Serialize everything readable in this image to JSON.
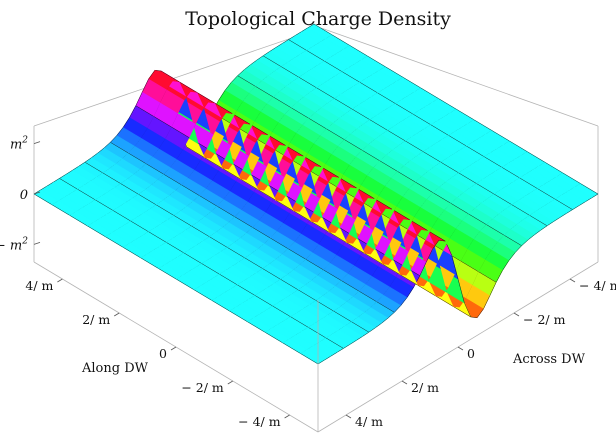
{
  "chart_data": {
    "type": "surface3d",
    "title": "Topological Charge Density",
    "x_axis": {
      "label": "Along DW",
      "ticks": [
        "4/ m",
        "2/ m",
        "0",
        "− 2/ m",
        "− 4/ m"
      ],
      "values": [
        4,
        2,
        0,
        -2,
        -4
      ]
    },
    "y_axis": {
      "label": "Across DW",
      "ticks": [
        "− 4/ m",
        "− 2/ m",
        "0",
        "2/ m",
        "4/ m"
      ],
      "values": [
        -4,
        -2,
        0,
        2,
        4
      ]
    },
    "z_axis": {
      "label": "",
      "ticks": [
        "m²",
        "0",
        "− m²"
      ],
      "values": [
        1,
        0,
        -1
      ],
      "tick_parts": [
        {
          "text": "m",
          "sup": "2"
        },
        {
          "text": "0",
          "sup": ""
        },
        {
          "text": "− m",
          "sup": "2"
        }
      ]
    },
    "x_range": [
      -5,
      5
    ],
    "y_range": [
      -5,
      5
    ],
    "z_range": [
      -1.35,
      1.35
    ],
    "function": "z = tanh(m*y) * sech(m*y)^2 * m^2 (kink across the domain wall, constant along it)",
    "surface_colors": {
      "flat": "#33e6e6",
      "peak": "#ff1a1a",
      "trough": "#33ff33",
      "mesh": "#000000"
    },
    "grid": "mesh",
    "box": true
  }
}
